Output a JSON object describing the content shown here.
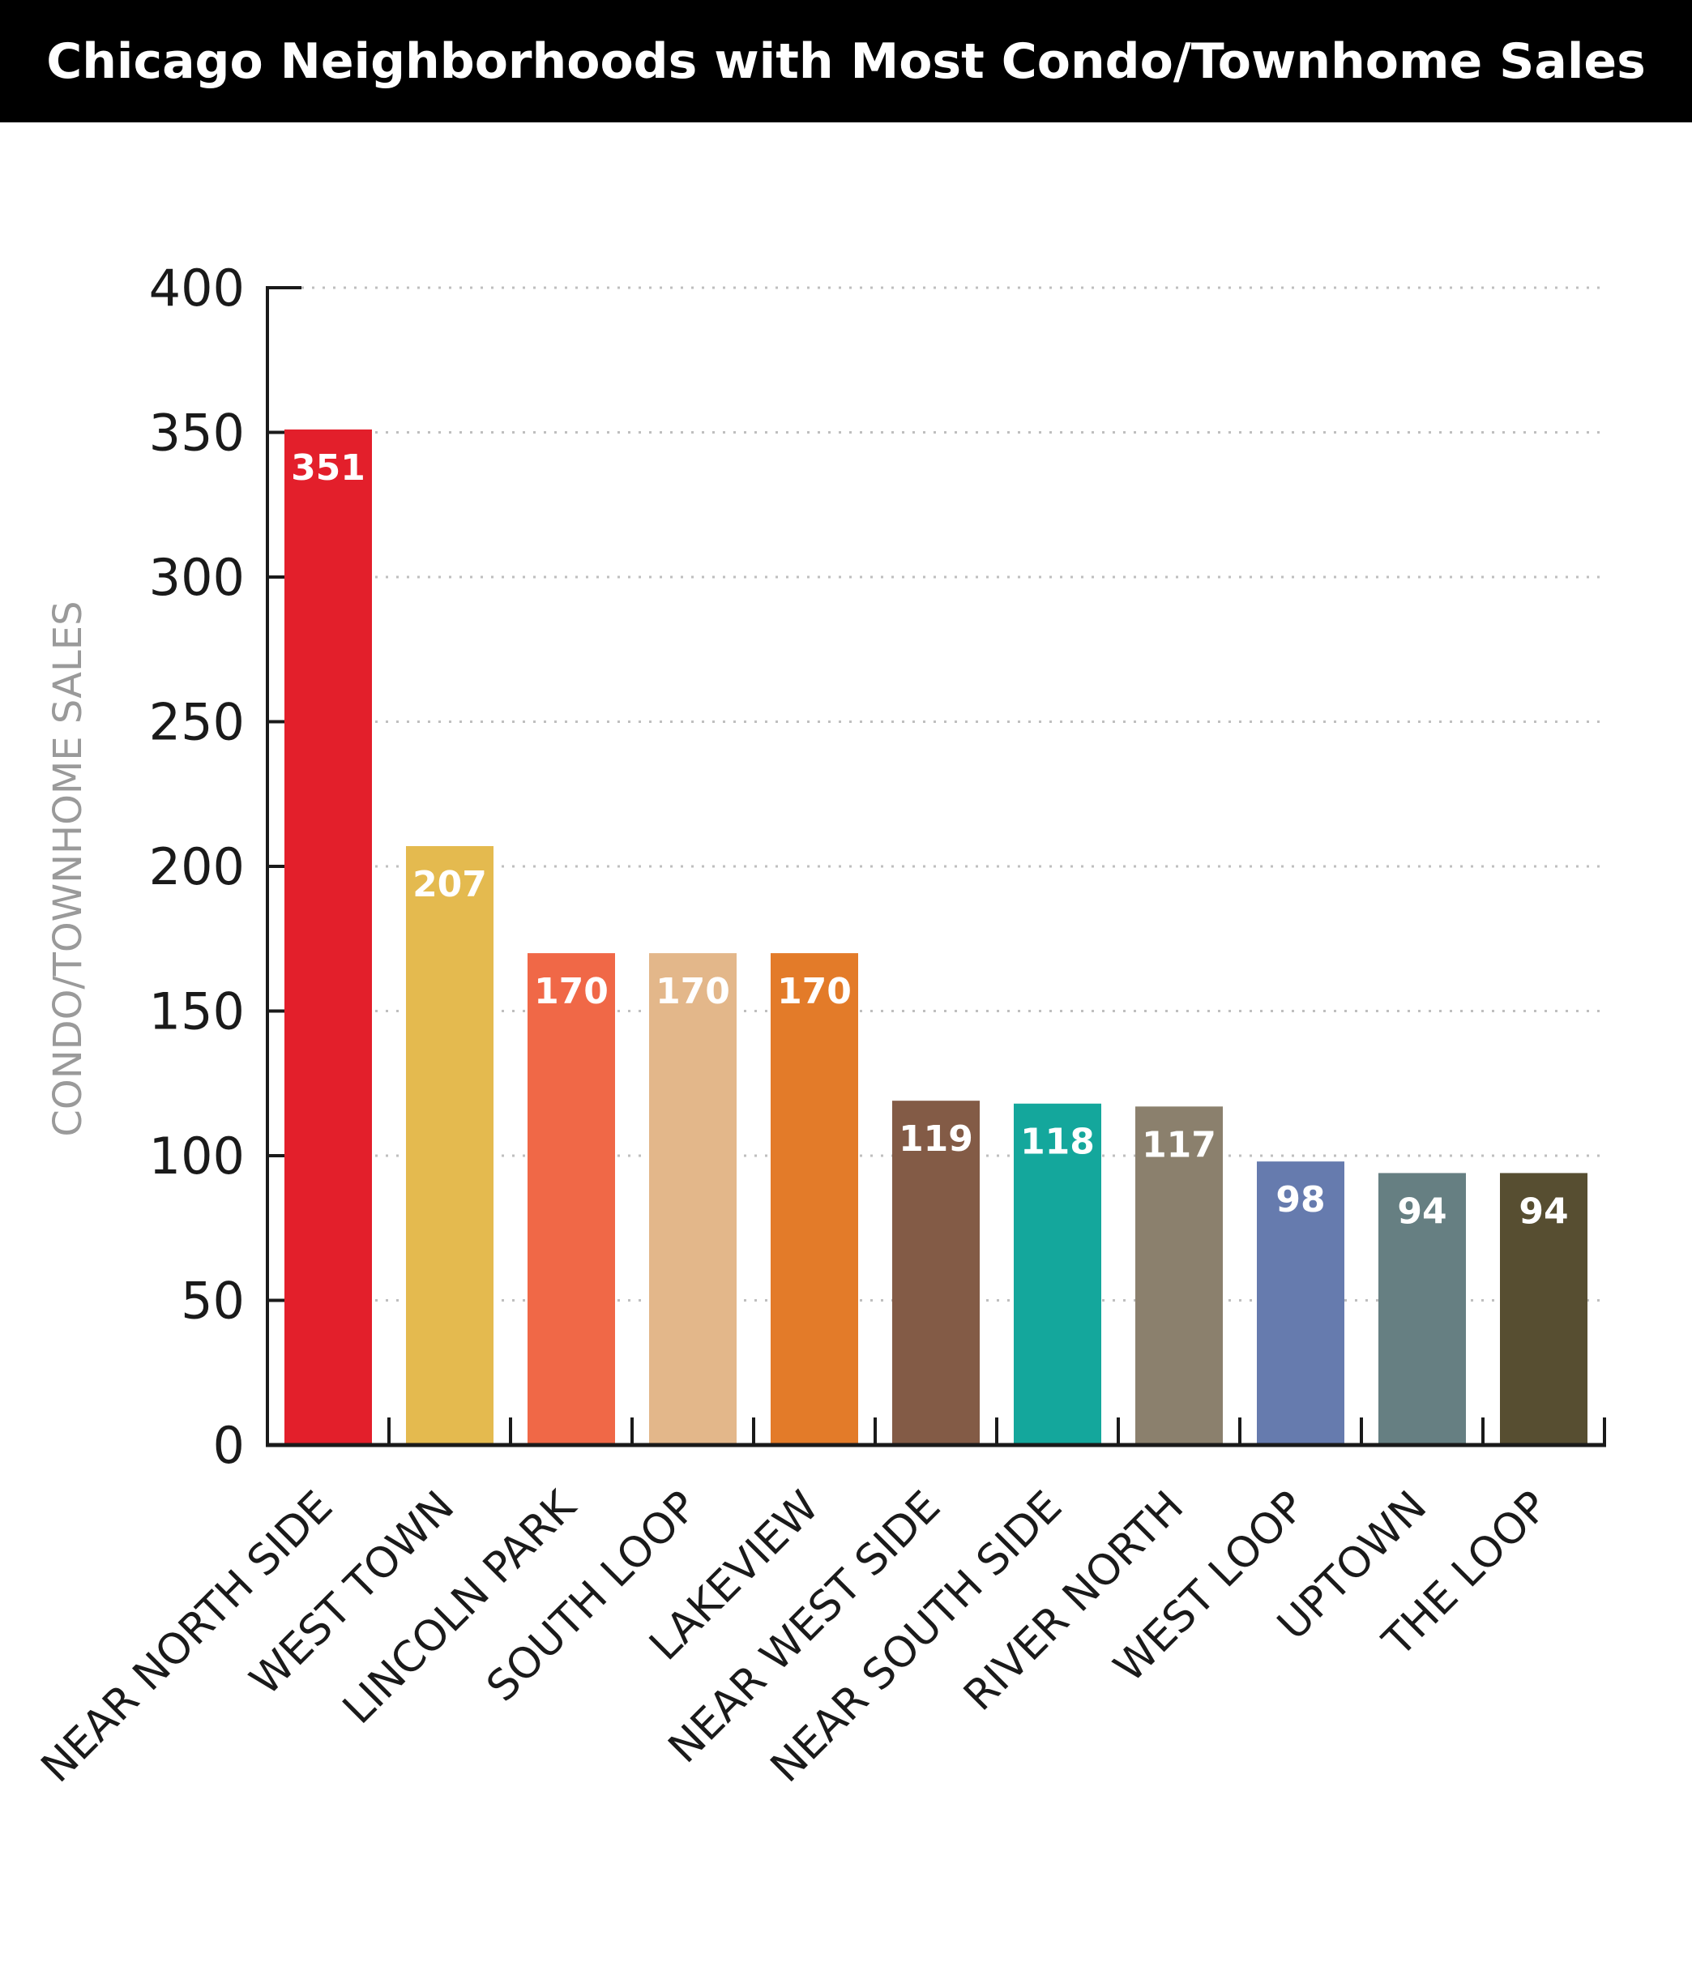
{
  "chart_data": {
    "type": "bar",
    "title": "Chicago Neighborhoods with Most Condo/Townhome Sales",
    "ylabel": "CONDO/TOWNHOME SALES",
    "xlabel": "",
    "ylim": [
      0,
      400
    ],
    "yticks": [
      "0",
      "50",
      "100",
      "150",
      "200",
      "250",
      "300",
      "350",
      "400"
    ],
    "ytick_values": [
      0,
      50,
      100,
      150,
      200,
      250,
      300,
      350,
      400
    ],
    "grid": "horizontal dotted",
    "categories": [
      "NEAR NORTH SIDE",
      "WEST TOWN",
      "LINCOLN PARK",
      "SOUTH LOOP",
      "LAKEVIEW",
      "NEAR WEST SIDE",
      "NEAR SOUTH SIDE",
      "RIVER NORTH",
      "WEST LOOP",
      "UPTOWN",
      "THE LOOP"
    ],
    "values": [
      351,
      207,
      170,
      170,
      170,
      119,
      118,
      117,
      98,
      94,
      94
    ],
    "data_labels": [
      "351",
      "207",
      "170",
      "170",
      "170",
      "119",
      "118",
      "117",
      "98",
      "94",
      "94"
    ],
    "colors": [
      "#E31F2B",
      "#E4BA4F",
      "#F06847",
      "#E3B78A",
      "#E37B29",
      "#835B46",
      "#14A79C",
      "#8B806D",
      "#667BAE",
      "#667F82",
      "#574E31"
    ]
  }
}
